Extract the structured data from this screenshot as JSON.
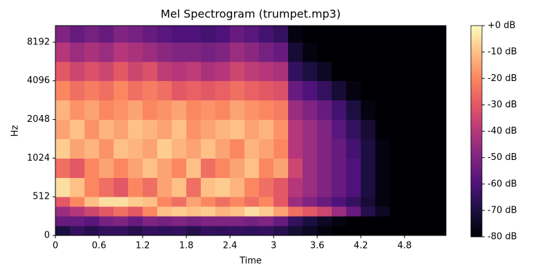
{
  "chart_data": {
    "type": "heatmap",
    "title": "Mel Spectrogram (trumpet.mp3)",
    "x_label": "Time",
    "y_label": "Hz",
    "xlim": [
      0,
      5.37
    ],
    "xticks": [
      0,
      0.6,
      1.2,
      1.8,
      2.4,
      3,
      3.6,
      4.2,
      4.8
    ],
    "ylim": [
      0,
      11025
    ],
    "yticks": [
      0,
      512,
      1024,
      2048,
      4096,
      8192
    ],
    "x_edges": [
      0,
      0.2,
      0.4,
      0.6,
      0.8,
      1.0,
      1.2,
      1.4,
      1.6,
      1.8,
      2.0,
      2.2,
      2.4,
      2.6,
      2.8,
      3.0,
      3.2,
      3.4,
      3.6,
      3.8,
      4.0,
      4.2,
      4.4,
      4.6,
      4.8,
      5.0,
      5.2,
      5.37
    ],
    "y_edges": [
      0,
      128,
      256,
      384,
      512,
      724,
      1024,
      1448,
      2048,
      2896,
      4096,
      5793,
      8192,
      11025
    ],
    "colormap": "magma",
    "zlim": [
      -80,
      0
    ],
    "zticks": [
      {
        "value": 0,
        "label": "+0 dB"
      },
      {
        "value": -10,
        "label": "-10 dB"
      },
      {
        "value": -20,
        "label": "-20 dB"
      },
      {
        "value": -30,
        "label": "-30 dB"
      },
      {
        "value": -40,
        "label": "-40 dB"
      },
      {
        "value": -50,
        "label": "-50 dB"
      },
      {
        "value": -60,
        "label": "-60 dB"
      },
      {
        "value": -70,
        "label": "-70 dB"
      },
      {
        "value": -80,
        "label": "-80 dB"
      }
    ],
    "z": [
      [
        -70,
        -65,
        -68,
        -65,
        -65,
        -68,
        -65,
        -66,
        -65,
        -68,
        -65,
        -66,
        -65,
        -66,
        -65,
        -68,
        -72,
        -75,
        -78,
        -80,
        -80,
        -80,
        -80,
        -80,
        -80,
        -80,
        -80
      ],
      [
        -55,
        -55,
        -58,
        -52,
        -50,
        -55,
        -50,
        -52,
        -50,
        -52,
        -50,
        -50,
        -50,
        -52,
        -50,
        -55,
        -65,
        -70,
        -75,
        -78,
        -80,
        -80,
        -80,
        -80,
        -80,
        -80,
        -80
      ],
      [
        -45,
        -40,
        -35,
        -30,
        -25,
        -30,
        -20,
        -10,
        -8,
        -10,
        -8,
        -12,
        -10,
        -5,
        -8,
        -15,
        -25,
        -30,
        -35,
        -45,
        -55,
        -68,
        -75,
        -80,
        -80,
        -80,
        -80
      ],
      [
        -30,
        -20,
        -10,
        -5,
        -5,
        -8,
        -10,
        -20,
        -25,
        -15,
        -20,
        -25,
        -20,
        -25,
        -20,
        -30,
        -45,
        -50,
        -55,
        -60,
        -65,
        -72,
        -78,
        -80,
        -80,
        -80,
        -80
      ],
      [
        -5,
        -10,
        -20,
        -25,
        -30,
        -20,
        -25,
        -15,
        -10,
        -25,
        -10,
        -8,
        -12,
        -20,
        -25,
        -30,
        -40,
        -45,
        -50,
        -55,
        -60,
        -70,
        -78,
        -80,
        -80,
        -80,
        -80
      ],
      [
        -25,
        -30,
        -20,
        -15,
        -20,
        -15,
        -10,
        -15,
        -20,
        -10,
        -25,
        -20,
        -15,
        -10,
        -20,
        -15,
        -35,
        -45,
        -50,
        -55,
        -60,
        -70,
        -78,
        -80,
        -80,
        -80,
        -80
      ],
      [
        -8,
        -15,
        -12,
        -18,
        -10,
        -12,
        -15,
        -8,
        -12,
        -15,
        -10,
        -15,
        -20,
        -12,
        -15,
        -20,
        -40,
        -45,
        -50,
        -55,
        -62,
        -70,
        -78,
        -80,
        -80,
        -80,
        -80
      ],
      [
        -15,
        -10,
        -18,
        -12,
        -15,
        -10,
        -12,
        -15,
        -10,
        -18,
        -15,
        -12,
        -10,
        -15,
        -12,
        -18,
        -40,
        -45,
        -50,
        -58,
        -65,
        -72,
        -80,
        -80,
        -80,
        -80,
        -80
      ],
      [
        -12,
        -18,
        -15,
        -20,
        -18,
        -15,
        -20,
        -18,
        -15,
        -20,
        -18,
        -20,
        -15,
        -18,
        -20,
        -22,
        -45,
        -50,
        -55,
        -62,
        -70,
        -78,
        -80,
        -80,
        -80,
        -80,
        -80
      ],
      [
        -20,
        -25,
        -22,
        -25,
        -20,
        -25,
        -22,
        -25,
        -30,
        -28,
        -30,
        -28,
        -25,
        -28,
        -30,
        -32,
        -55,
        -60,
        -65,
        -72,
        -78,
        -80,
        -80,
        -80,
        -80,
        -80,
        -80
      ],
      [
        -30,
        -35,
        -32,
        -35,
        -30,
        -35,
        -32,
        -38,
        -40,
        -38,
        -42,
        -40,
        -35,
        -38,
        -40,
        -42,
        -65,
        -70,
        -75,
        -80,
        -80,
        -80,
        -80,
        -80,
        -80,
        -80,
        -80
      ],
      [
        -40,
        -45,
        -42,
        -45,
        -40,
        -42,
        -45,
        -48,
        -50,
        -50,
        -52,
        -50,
        -45,
        -48,
        -52,
        -55,
        -72,
        -78,
        -80,
        -80,
        -80,
        -80,
        -80,
        -80,
        -80,
        -80,
        -80
      ],
      [
        -50,
        -55,
        -52,
        -55,
        -50,
        -52,
        -55,
        -58,
        -60,
        -60,
        -62,
        -60,
        -55,
        -58,
        -62,
        -65,
        -78,
        -80,
        -80,
        -80,
        -80,
        -80,
        -80,
        -80,
        -80,
        -80,
        -80
      ]
    ]
  }
}
